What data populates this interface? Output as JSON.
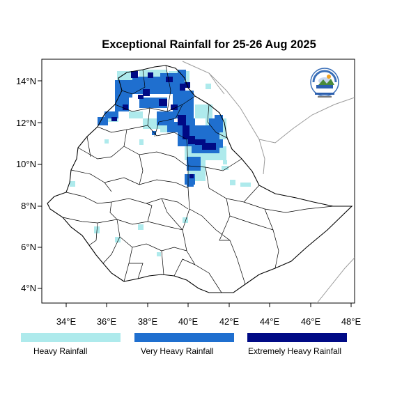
{
  "title": "Exceptional Rainfall for 25-26 Aug 2025",
  "map": {
    "x_ticks": [
      "34°E",
      "36°E",
      "38°E",
      "40°E",
      "42°E",
      "44°E",
      "46°E",
      "48°E"
    ],
    "y_ticks": [
      "14°N",
      "12°N",
      "10°N",
      "8°N",
      "6°N",
      "4°N"
    ],
    "lon_range": [
      32.8,
      48.2
    ],
    "lat_range": [
      3.2,
      15.0
    ]
  },
  "legend": [
    {
      "label": "Heavy Rainfall",
      "color": "#aeeaec"
    },
    {
      "label": "Very Heavy Rainfall",
      "color": "#1f6fcf"
    },
    {
      "label": "Extremely Heavy Rainfall",
      "color": "#000a85"
    }
  ],
  "logo": {
    "icon": "agency-logo-icon"
  }
}
